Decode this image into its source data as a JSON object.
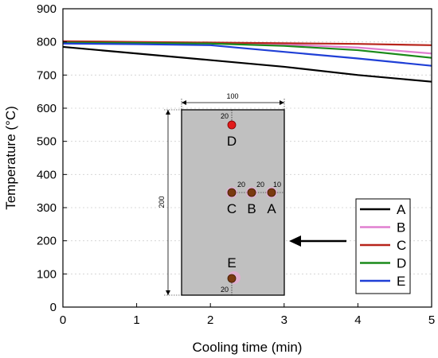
{
  "chart_data": {
    "type": "line",
    "xlabel": "Cooling time (min)",
    "ylabel": "Temperature (°C)",
    "xlim": [
      0,
      5
    ],
    "ylim": [
      0,
      900
    ],
    "xticks": [
      0,
      1,
      2,
      3,
      4,
      5
    ],
    "yticks": [
      0,
      100,
      200,
      300,
      400,
      500,
      600,
      700,
      800,
      900
    ],
    "grid": "horizontal dotted",
    "legend_position": "lower-right",
    "series": [
      {
        "name": "A",
        "color": "#000000",
        "x": [
          0,
          1,
          2,
          3,
          4,
          5
        ],
        "y": [
          785,
          765,
          745,
          725,
          700,
          680
        ]
      },
      {
        "name": "B",
        "color": "#e07fd0",
        "x": [
          0,
          1,
          2,
          3,
          4,
          5
        ],
        "y": [
          800,
          798,
          796,
          792,
          783,
          765
        ]
      },
      {
        "name": "C",
        "color": "#b7241b",
        "x": [
          0,
          1,
          2,
          3,
          4,
          5
        ],
        "y": [
          802,
          800,
          798,
          796,
          794,
          790
        ]
      },
      {
        "name": "D",
        "color": "#1a8a1a",
        "x": [
          0,
          1,
          2,
          3,
          4,
          5
        ],
        "y": [
          798,
          797,
          795,
          788,
          775,
          752
        ]
      },
      {
        "name": "E",
        "color": "#1f3fd6",
        "x": [
          0,
          1,
          2,
          3,
          4,
          5
        ],
        "y": [
          795,
          793,
          790,
          770,
          750,
          728
        ]
      }
    ]
  },
  "inset": {
    "width_label": "100",
    "height_label": "200",
    "points": [
      {
        "label": "A",
        "spacing_label": "10",
        "color": "#7a3a10"
      },
      {
        "label": "B",
        "spacing_label": "20",
        "color": "#7a3a10"
      },
      {
        "label": "C",
        "spacing_label": "20",
        "color": "#7a3a10"
      },
      {
        "label": "D",
        "spacing_label": "20",
        "color": "#e11b1b"
      },
      {
        "label": "E",
        "spacing_label": "20",
        "color": "#7a3a10"
      }
    ]
  }
}
